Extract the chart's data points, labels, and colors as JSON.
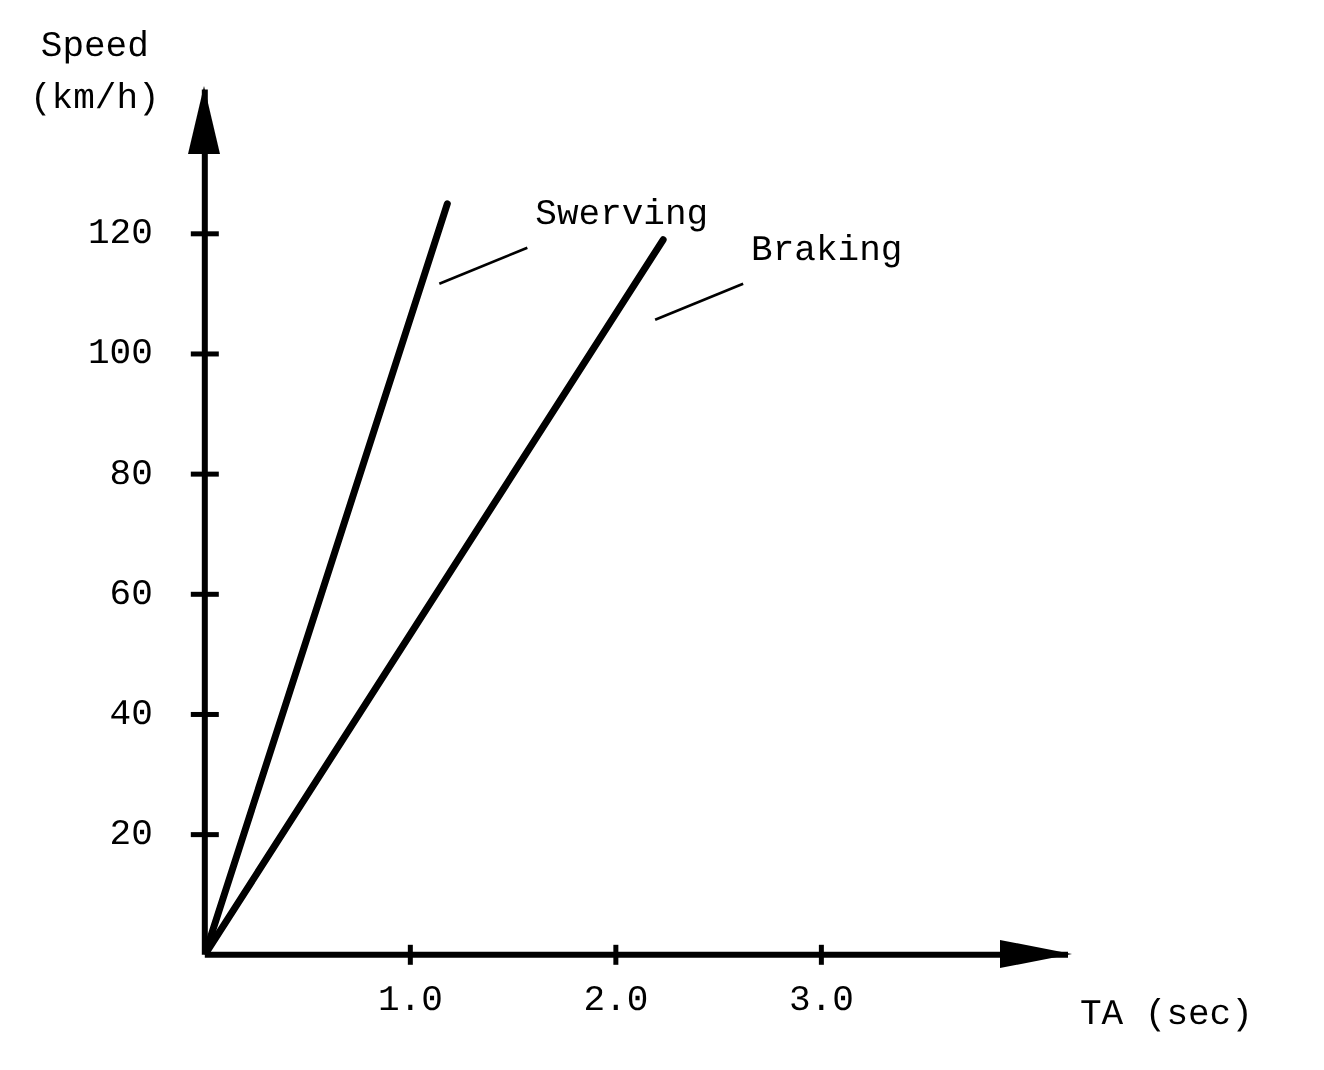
{
  "chart_data": {
    "type": "line",
    "xlabel": "TA (sec)",
    "ylabel": "Speed (km/h)",
    "xlim": [
      0,
      4.2
    ],
    "ylim": [
      0,
      144
    ],
    "xticks": [
      {
        "value": 1,
        "label": "1.0"
      },
      {
        "value": 2,
        "label": "2.0"
      },
      {
        "value": 3,
        "label": "3.0"
      }
    ],
    "yticks": [
      20,
      40,
      60,
      80,
      100,
      120
    ],
    "grid": false,
    "legend": false,
    "marker": "none",
    "line_style": "solid",
    "series": [
      {
        "name": "Swerving",
        "color": "#000000",
        "x": [
          0,
          1.18
        ],
        "values": [
          0,
          125
        ]
      },
      {
        "name": "Braking",
        "color": "#000000",
        "x": [
          0,
          2.23
        ],
        "values": [
          0,
          119
        ]
      }
    ]
  }
}
